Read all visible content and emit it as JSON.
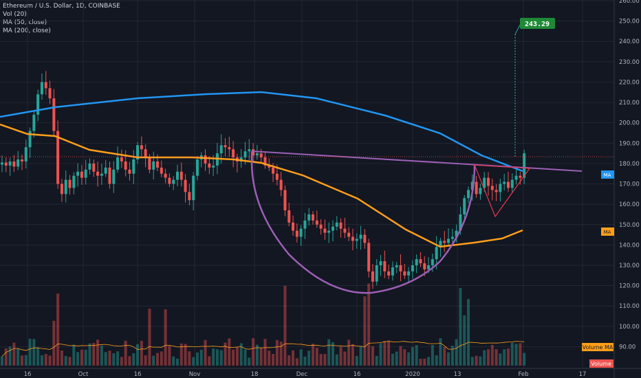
{
  "legend": {
    "symbol": "Ethereum / U.S. Dollar, 1D, COINBASE",
    "vol": "Vol (20)",
    "ma1": "MA (50, close)",
    "ma2": "MA (200, close)"
  },
  "colors": {
    "background": "#131722",
    "grid": "#2a2e39",
    "text": "#b2b5be",
    "up": "#26a69a",
    "down": "#ef5350",
    "ma50": "#ff9f1a",
    "ma200": "#2196f3",
    "pattern": "#9c5fb5",
    "pennant": "#e53950",
    "target": "#1e8a35"
  },
  "chart_data": {
    "type": "candlestick",
    "title": "Ethereum / U.S. Dollar, 1D, COINBASE",
    "ylim": [
      88,
      260
    ],
    "y_ticks": [
      90,
      100,
      110,
      120,
      130,
      140,
      150,
      160,
      170,
      180,
      190,
      200,
      210,
      220,
      230,
      240,
      250,
      260
    ],
    "x_ticks": [
      "16",
      "Oct",
      "16",
      "Nov",
      "18",
      "Dec",
      "16",
      "2020",
      "13",
      "Feb",
      "17"
    ],
    "closes": [
      180.5,
      179,
      181,
      178.5,
      182,
      181,
      188,
      196,
      204,
      214,
      220,
      217,
      212,
      196,
      170,
      165,
      172,
      168,
      174,
      176,
      173,
      177,
      180,
      176,
      174,
      175,
      178,
      170,
      177,
      183,
      181,
      177,
      175,
      182,
      189,
      187,
      183,
      177,
      181,
      178,
      175,
      173,
      170,
      172,
      176,
      172,
      166,
      162,
      174,
      182,
      184,
      180,
      178,
      179,
      185,
      189,
      188,
      187,
      183,
      181,
      183,
      186,
      187,
      184,
      185,
      183,
      179,
      178,
      175,
      172,
      167,
      157,
      151,
      147,
      144,
      148,
      152,
      155,
      152,
      150,
      148,
      146,
      147,
      149,
      151,
      148,
      146,
      144,
      142,
      143,
      145,
      141,
      127,
      122,
      130,
      132,
      127,
      125,
      129,
      130,
      127,
      125,
      127,
      130,
      133,
      131,
      128,
      130,
      133,
      139,
      142,
      141,
      143,
      144,
      147,
      155,
      163,
      167,
      171,
      165,
      168,
      173,
      169,
      167,
      166,
      170,
      171,
      168,
      172,
      174,
      173,
      185
    ],
    "price_label": "243.29",
    "volume_label": "Volume",
    "volume_ma_label": "Volume MA",
    "ma_labels": [
      "MA",
      "MA"
    ]
  }
}
